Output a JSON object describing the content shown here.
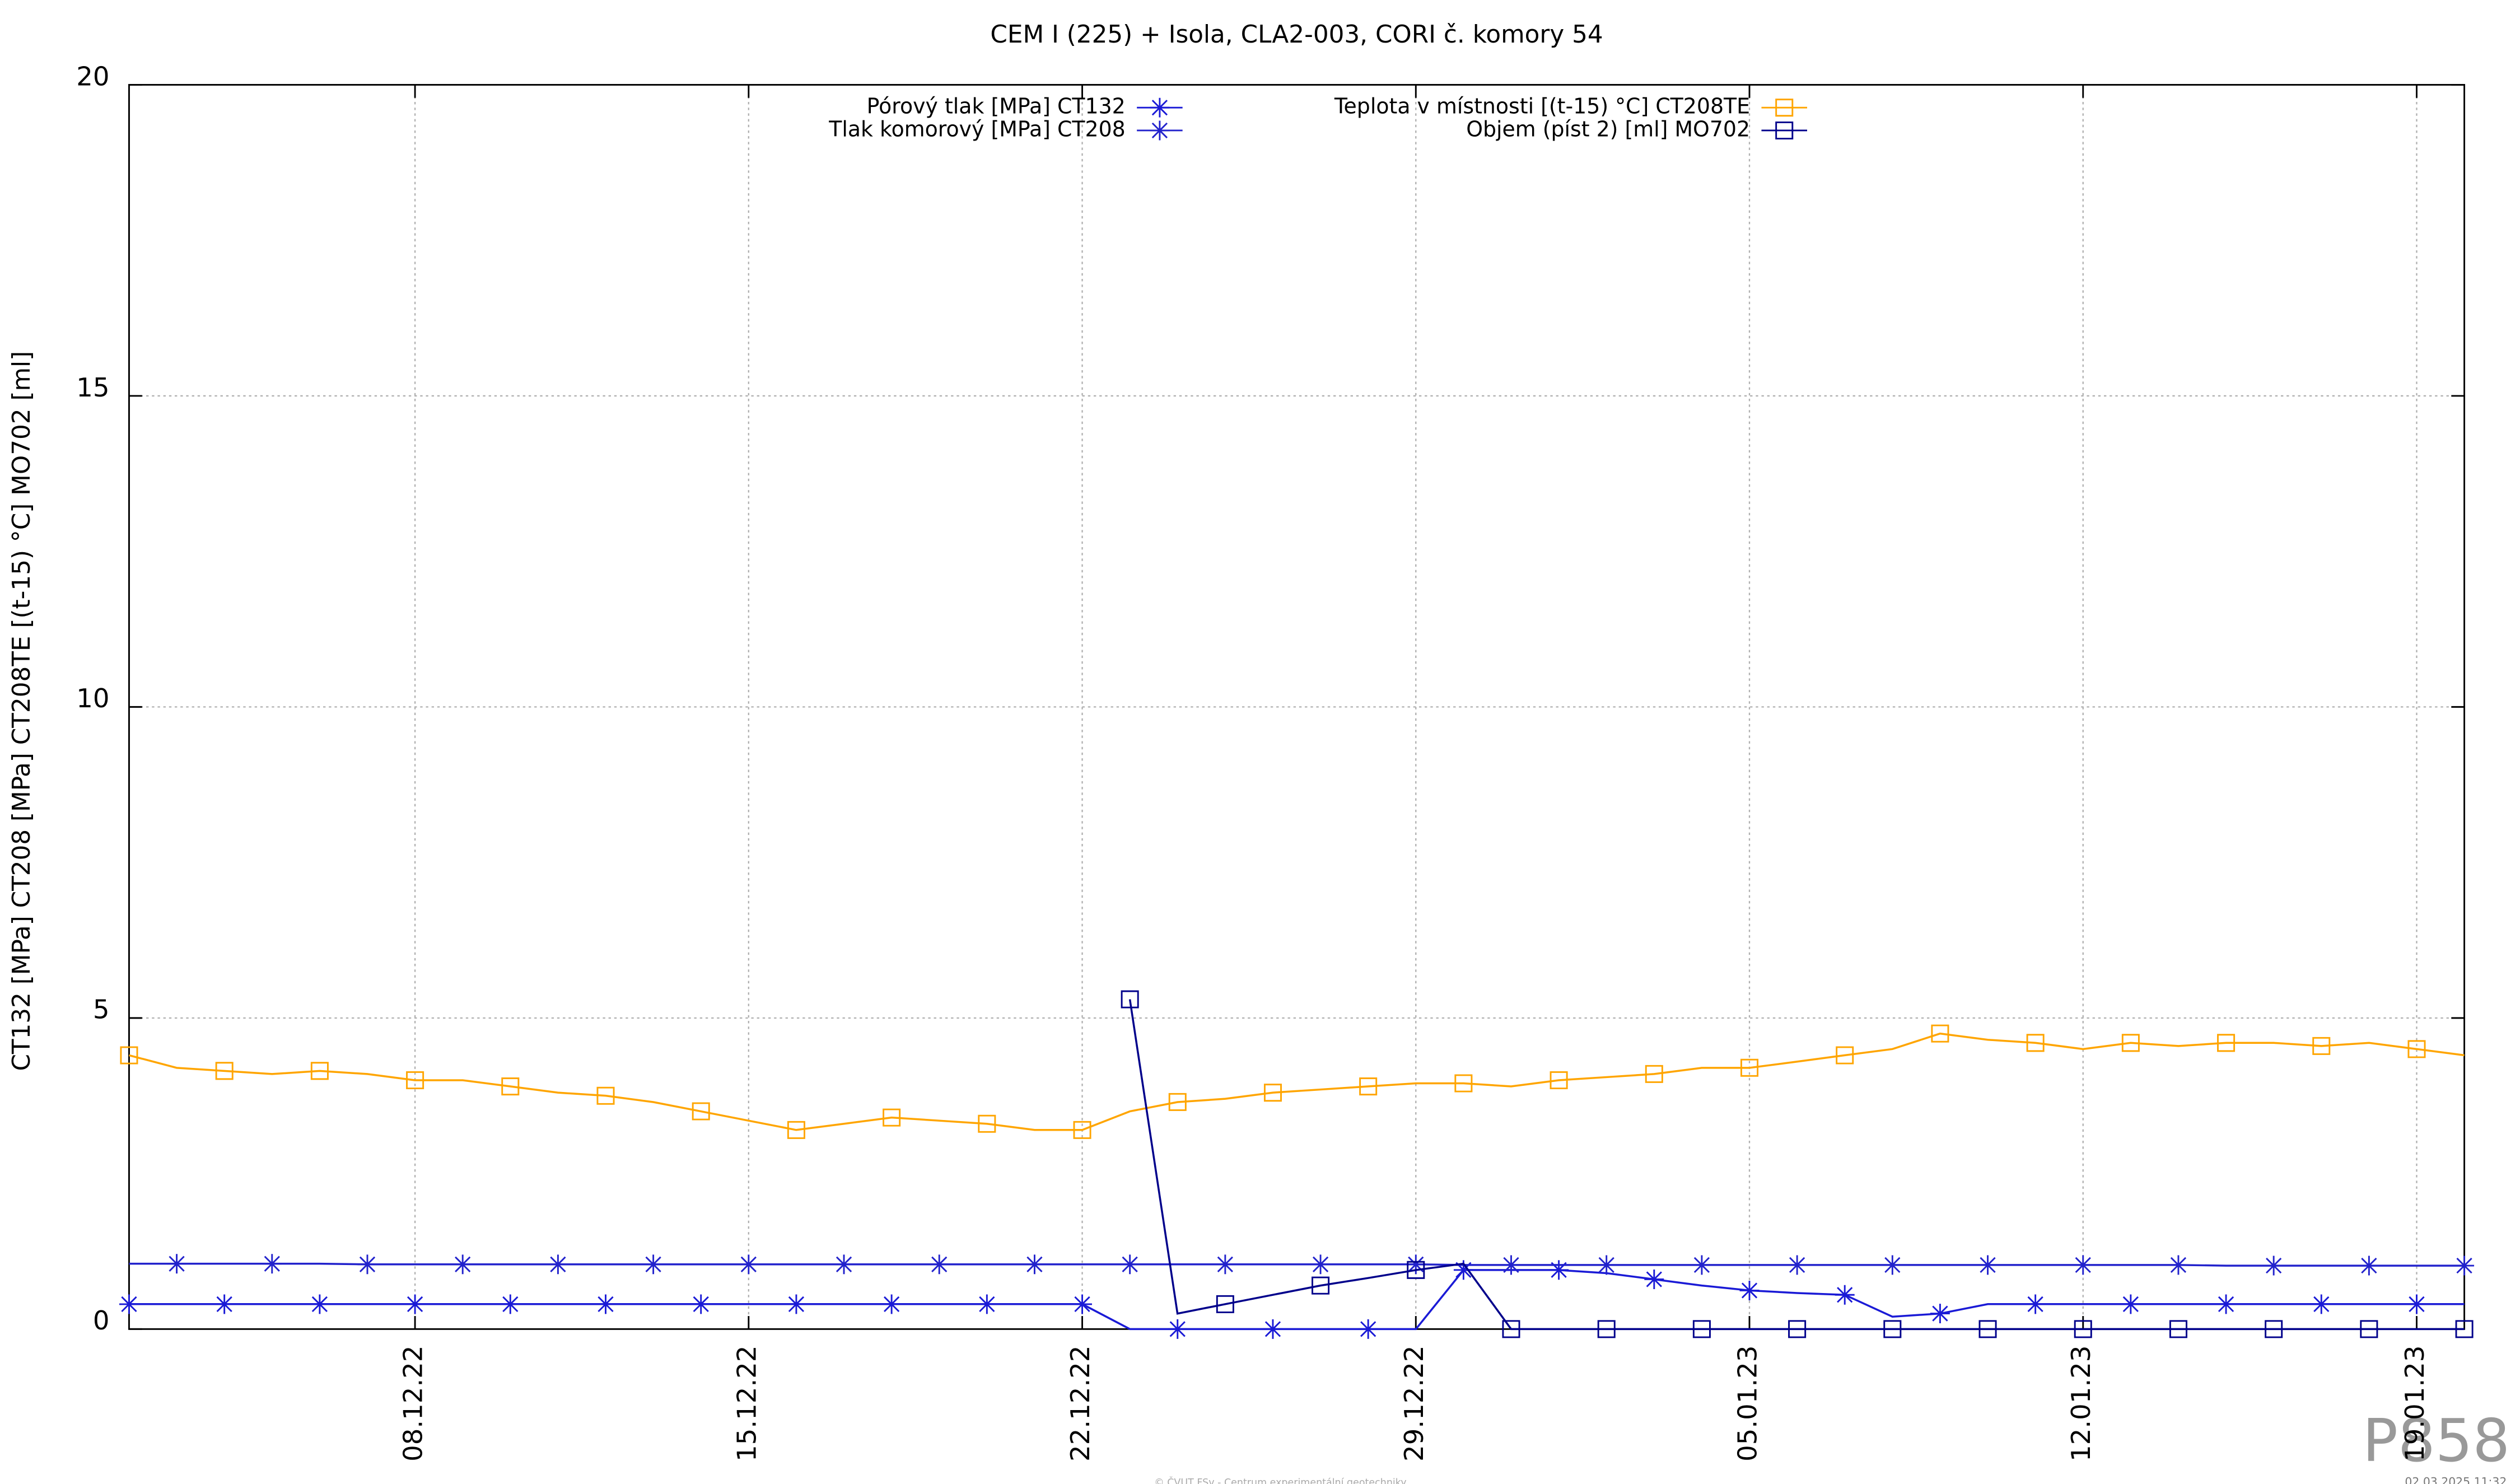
{
  "chart_data": {
    "type": "line",
    "title": "CEM I (225) + Isola, CLA2-003, CORI č. komory 54",
    "y_label": "CT132 [MPa] CT208 [MPa] CT208TE [(t-15) °C] MO702 [ml]",
    "footer": "© ČVUT FSv - Centrum experimentální geotechniky",
    "timestamp": "02.03.2025 11:32",
    "watermark": "P858",
    "x": [
      "02.12.22",
      "03.12.22",
      "04.12.22",
      "05.12.22",
      "06.12.22",
      "07.12.22",
      "08.12.22",
      "09.12.22",
      "10.12.22",
      "11.12.22",
      "12.12.22",
      "13.12.22",
      "14.12.22",
      "15.12.22",
      "16.12.22",
      "17.12.22",
      "18.12.22",
      "19.12.22",
      "20.12.22",
      "21.12.22",
      "22.12.22",
      "23.12.22",
      "24.12.22",
      "25.12.22",
      "26.12.22",
      "27.12.22",
      "28.12.22",
      "29.12.22",
      "30.12.22",
      "31.12.22",
      "01.01.23",
      "02.01.23",
      "03.01.23",
      "04.01.23",
      "05.01.23",
      "06.01.23",
      "07.01.23",
      "08.01.23",
      "09.01.23",
      "10.01.23",
      "11.01.23",
      "12.01.23",
      "13.01.23",
      "14.01.23",
      "15.01.23",
      "16.01.23",
      "17.01.23",
      "18.01.23",
      "19.01.23",
      "20.01.23"
    ],
    "xlim": [
      "02.12.22",
      "20.01.23"
    ],
    "xticks": [
      "08.12.22",
      "15.12.22",
      "22.12.22",
      "29.12.22",
      "05.01.23",
      "12.01.23",
      "19.01.23"
    ],
    "ylim": [
      0,
      20
    ],
    "yticks": [
      0,
      5,
      10,
      15,
      20
    ],
    "grid": true,
    "series": [
      {
        "name": "Pórový tlak [MPa] CT132",
        "color": "#1a1ad6",
        "marker": "star",
        "values": [
          0.4,
          0.4,
          0.4,
          0.4,
          0.4,
          0.4,
          0.4,
          0.4,
          0.4,
          0.4,
          0.4,
          0.4,
          0.4,
          0.4,
          0.4,
          0.4,
          0.4,
          0.4,
          0.4,
          0.4,
          0.4,
          0,
          0,
          0,
          0,
          0,
          0,
          0,
          0.95,
          0.95,
          0.95,
          0.9,
          0.8,
          0.7,
          0.62,
          0.58,
          0.55,
          0.2,
          0.25,
          0.4,
          0.4,
          0.4,
          0.4,
          0.4,
          0.4,
          0.4,
          0.4,
          0.4,
          0.4,
          0.4
        ]
      },
      {
        "name": "Tlak komorový [MPa] CT208",
        "color": "#2222cc",
        "marker": "star",
        "values": [
          1.05,
          1.05,
          1.05,
          1.05,
          1.05,
          1.04,
          1.04,
          1.04,
          1.04,
          1.04,
          1.04,
          1.04,
          1.04,
          1.04,
          1.04,
          1.04,
          1.04,
          1.04,
          1.04,
          1.04,
          1.04,
          1.04,
          1.04,
          1.04,
          1.04,
          1.04,
          1.04,
          1.04,
          1.03,
          1.03,
          1.03,
          1.03,
          1.03,
          1.03,
          1.03,
          1.03,
          1.03,
          1.03,
          1.03,
          1.03,
          1.03,
          1.03,
          1.03,
          1.03,
          1.02,
          1.02,
          1.02,
          1.02,
          1.02,
          1.02
        ]
      },
      {
        "name": "Teplota v místnosti [(t-15) °C] CT208TE",
        "color": "#ffa500",
        "marker": "square",
        "values": [
          4.4,
          4.2,
          4.15,
          4.1,
          4.15,
          4.1,
          4.0,
          4.0,
          3.9,
          3.8,
          3.75,
          3.65,
          3.5,
          3.35,
          3.2,
          3.3,
          3.4,
          3.35,
          3.3,
          3.2,
          3.2,
          3.5,
          3.65,
          3.7,
          3.8,
          3.85,
          3.9,
          3.95,
          3.95,
          3.9,
          4.0,
          4.05,
          4.1,
          4.2,
          4.2,
          4.3,
          4.4,
          4.5,
          4.75,
          4.65,
          4.6,
          4.5,
          4.6,
          4.55,
          4.6,
          4.6,
          4.55,
          4.6,
          4.5,
          4.4
        ]
      },
      {
        "name": "Objem (píst 2) [ml] MO702",
        "color": "#00008b",
        "marker": "square",
        "values": [
          null,
          null,
          null,
          null,
          null,
          null,
          null,
          null,
          null,
          null,
          null,
          null,
          null,
          null,
          null,
          null,
          null,
          null,
          null,
          null,
          null,
          5.3,
          0.25,
          0.4,
          0.55,
          0.7,
          0.82,
          0.95,
          1.05,
          0,
          0,
          0,
          0,
          0,
          0,
          0,
          0,
          0,
          0,
          0,
          0,
          0,
          0,
          0,
          0,
          0,
          0,
          0,
          0,
          0
        ]
      }
    ]
  }
}
